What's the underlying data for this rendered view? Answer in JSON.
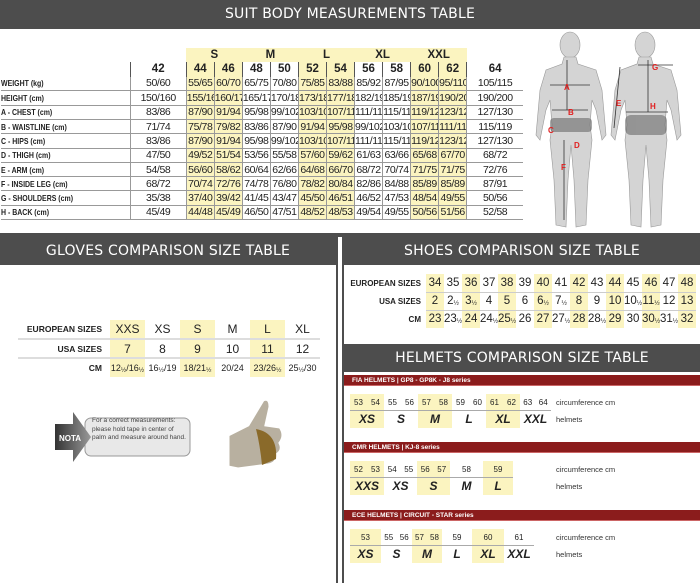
{
  "suit": {
    "title": "SUIT BODY MEASUREMENTS TABLE",
    "groups": [
      {
        "label": "",
        "span": 1
      },
      {
        "label": "S",
        "span": 2
      },
      {
        "label": "M",
        "span": 2
      },
      {
        "label": "L",
        "span": 2
      },
      {
        "label": "XL",
        "span": 2
      },
      {
        "label": "XXL",
        "span": 2
      },
      {
        "label": "",
        "span": 1
      }
    ],
    "sizes": [
      "42",
      "44",
      "46",
      "48",
      "50",
      "52",
      "54",
      "56",
      "58",
      "60",
      "62",
      "64"
    ],
    "highlight_sizes": [
      "44",
      "46",
      "52",
      "54",
      "60",
      "62"
    ],
    "rows": [
      {
        "label": "WEIGHT (kg)",
        "values": [
          "50/60",
          "55/65",
          "60/70",
          "65/75",
          "70/80",
          "75/85",
          "83/88",
          "85/92",
          "87/95",
          "90/100",
          "95/110",
          "105/115"
        ]
      },
      {
        "label": "HEIGHT (cm)",
        "values": [
          "150/160",
          "155/165",
          "160/170",
          "165/175",
          "170/180",
          "173/183",
          "177/187",
          "182/190",
          "185/195",
          "187/198",
          "190/200",
          "190/200"
        ]
      },
      {
        "label": "A - CHEST (cm)",
        "values": [
          "83/86",
          "87/90",
          "91/94",
          "95/98",
          "99/102",
          "103/106",
          "107/110",
          "111/114",
          "115/118",
          "119/122",
          "123/126",
          "127/130"
        ]
      },
      {
        "label": "B - WAISTLINE (cm)",
        "values": [
          "71/74",
          "75/78",
          "79/82",
          "83/86",
          "87/90",
          "91/94",
          "95/98",
          "99/102",
          "103/106",
          "107/110",
          "111/114",
          "115/119"
        ]
      },
      {
        "label": "C - HIPS (cm)",
        "values": [
          "83/86",
          "87/90",
          "91/94",
          "95/98",
          "99/102",
          "103/106",
          "107/110",
          "111/114",
          "115/118",
          "119/122",
          "123/126",
          "127/130"
        ]
      },
      {
        "label": "D - THIGH (cm)",
        "values": [
          "47/50",
          "49/52",
          "51/54",
          "53/56",
          "55/58",
          "57/60",
          "59/62",
          "61/63",
          "63/66",
          "65/68",
          "67/70",
          "68/72"
        ]
      },
      {
        "label": "E - ARM (cm)",
        "values": [
          "54/58",
          "56/60",
          "58/62",
          "60/64",
          "62/66",
          "64/68",
          "66/70",
          "68/72",
          "70/74",
          "71/75",
          "71/75",
          "72/76"
        ]
      },
      {
        "label": "F - INSIDE LEG (cm)",
        "values": [
          "68/72",
          "70/74",
          "72/76",
          "74/78",
          "76/80",
          "78/82",
          "80/84",
          "82/86",
          "84/88",
          "85/89",
          "85/89",
          "87/91"
        ]
      },
      {
        "label": "G - SHOULDERS (cm)",
        "values": [
          "35/38",
          "37/40",
          "39/42",
          "41/45",
          "43/47",
          "45/50",
          "46/51",
          "46/52",
          "47/53",
          "48/54",
          "49/55",
          "50/56"
        ]
      },
      {
        "label": "H - BACK (cm)",
        "values": [
          "45/49",
          "44/48",
          "45/49",
          "46/50",
          "47/51",
          "48/52",
          "48/53",
          "49/54",
          "49/55",
          "50/56",
          "51/56",
          "52/58"
        ]
      }
    ],
    "figure_markers": [
      "A",
      "B",
      "C",
      "D",
      "E",
      "F",
      "G",
      "H"
    ]
  },
  "gloves": {
    "title": "GLOVES COMPARISON SIZE TABLE",
    "rows": [
      {
        "label": "EUROPEAN SIZES",
        "values": [
          "XXS",
          "XS",
          "S",
          "M",
          "L",
          "XL"
        ]
      },
      {
        "label": "USA SIZES",
        "values": [
          "7",
          "8",
          "9",
          "10",
          "11",
          "12"
        ]
      },
      {
        "label": "CM",
        "values": [
          "12½/16½",
          "16½/19",
          "18/21½",
          "20/24",
          "23/26½",
          "25½/30"
        ]
      }
    ],
    "highlight_index": [
      0,
      2,
      4
    ],
    "note_badge": "NOTA",
    "note_text": "For a correct measurements: please hold tape in center of palm and measure around hand."
  },
  "shoes": {
    "title": "SHOES COMPARISON SIZE TABLE",
    "rows": [
      {
        "label": "EUROPEAN SIZES",
        "values": [
          "34",
          "35",
          "36",
          "37",
          "38",
          "39",
          "40",
          "41",
          "42",
          "43",
          "44",
          "45",
          "46",
          "47",
          "48"
        ]
      },
      {
        "label": "USA SIZES",
        "values": [
          "2",
          "2½",
          "3½",
          "4",
          "5",
          "6",
          "6½",
          "7½",
          "8",
          "9",
          "10",
          "10½",
          "11½",
          "12",
          "13"
        ]
      },
      {
        "label": "CM",
        "values": [
          "23",
          "23½",
          "24",
          "24½",
          "25½",
          "26",
          "27",
          "27½",
          "28",
          "28½",
          "29",
          "30",
          "30½",
          "31½",
          "32"
        ]
      }
    ]
  },
  "helmets": {
    "title": "HELMETS COMPARISON SIZE TABLE",
    "circumference_label": "circumference cm",
    "helmets_label": "helmets",
    "series": [
      {
        "title": "FIA HELMETS  |  GP8 - GP8K - J8 series",
        "groups": [
          {
            "size": "XS",
            "cm": [
              "53",
              "54"
            ]
          },
          {
            "size": "S",
            "cm": [
              "55",
              "56"
            ]
          },
          {
            "size": "M",
            "cm": [
              "57",
              "58"
            ]
          },
          {
            "size": "L",
            "cm": [
              "59",
              "60"
            ]
          },
          {
            "size": "XL",
            "cm": [
              "61",
              "62"
            ]
          },
          {
            "size": "XXL",
            "cm": [
              "63",
              "64"
            ]
          }
        ]
      },
      {
        "title": "CMR HELMETS  |  KJ-8 series",
        "groups": [
          {
            "size": "XXS",
            "cm": [
              "52",
              "53"
            ]
          },
          {
            "size": "XS",
            "cm": [
              "54",
              "55"
            ]
          },
          {
            "size": "S",
            "cm": [
              "56",
              "57"
            ]
          },
          {
            "size": "M",
            "cm": [
              "58"
            ]
          },
          {
            "size": "L",
            "cm": [
              "59"
            ]
          }
        ]
      },
      {
        "title": "ECE HELMETS  |  CIRCUIT - STAR series",
        "groups": [
          {
            "size": "XS",
            "cm": [
              "53"
            ]
          },
          {
            "size": "S",
            "cm": [
              "55",
              "56"
            ]
          },
          {
            "size": "M",
            "cm": [
              "57",
              "58"
            ]
          },
          {
            "size": "L",
            "cm": [
              "59"
            ]
          },
          {
            "size": "XL",
            "cm": [
              "60"
            ]
          },
          {
            "size": "XXL",
            "cm": [
              "61"
            ]
          }
        ]
      }
    ]
  },
  "colors": {
    "header": "#4d4d4d",
    "highlight": "#fbf4c0",
    "helmet_bar": "#8b1c1c",
    "marker": "#e02020"
  }
}
